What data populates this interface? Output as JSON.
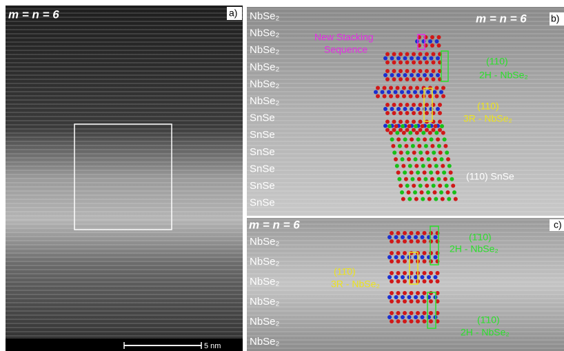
{
  "panel_a": {
    "title": "m = n = 6",
    "label": "a)",
    "scale_bar": "5 nm"
  },
  "panel_b": {
    "title": "m = n = 6",
    "label": "b)",
    "layers": [
      "NbSe₂",
      "NbSe₂",
      "NbSe₂",
      "NbSe₂",
      "NbSe₂",
      "NbSe₂",
      "SnSe",
      "SnSe",
      "SnSe",
      "SnSe",
      "SnSe",
      "SnSe"
    ],
    "new_stacking": [
      "New Stacking",
      "Sequence"
    ],
    "plane_2h": "(110)",
    "phase_2h": "2H - NbSe₂",
    "plane_3r": "(110)",
    "phase_3r": "3R - NbSe₂",
    "plane_snse": "(110)  SnSe"
  },
  "panel_c": {
    "title": "m = n = 6",
    "label": "c)",
    "layers": [
      "NbSe₂",
      "NbSe₂",
      "NbSe₂",
      "NbSe₂",
      "NbSe₂",
      "NbSe₂"
    ],
    "plane_2h_top": "(1̄10)",
    "phase_2h_top": "2H - NbSe₂",
    "plane_3r": "(11̄0)",
    "phase_3r": "3R - NbSe₂",
    "plane_2h_bottom": "(1̄10)",
    "phase_2h_bottom": "2H - NbSe₂"
  }
}
